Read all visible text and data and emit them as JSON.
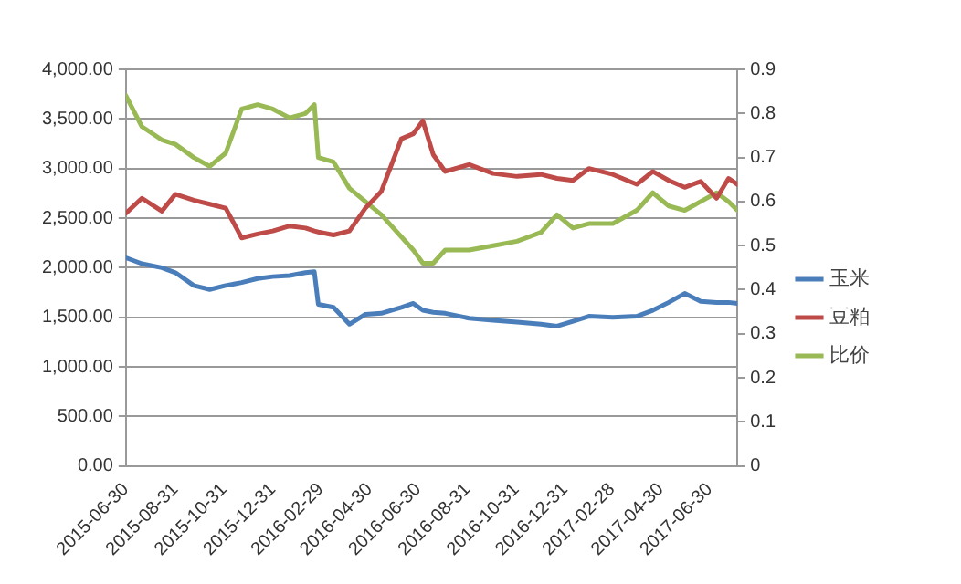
{
  "chart_data": {
    "type": "line",
    "x": [
      "2015-06-30",
      "2015-07-20",
      "2015-08-14",
      "2015-08-31",
      "2015-09-23",
      "2015-10-13",
      "2015-11-02",
      "2015-11-22",
      "2015-12-12",
      "2015-12-31",
      "2016-01-21",
      "2016-02-10",
      "2016-02-21",
      "2016-02-26",
      "2016-03-16",
      "2016-04-05",
      "2016-04-25",
      "2016-05-15",
      "2016-06-09",
      "2016-06-24",
      "2016-07-06",
      "2016-07-19",
      "2016-08-03",
      "2016-09-02",
      "2016-10-02",
      "2016-11-01",
      "2016-12-01",
      "2016-12-21",
      "2017-01-10",
      "2017-01-30",
      "2017-03-01",
      "2017-03-31",
      "2017-04-20",
      "2017-05-10",
      "2017-05-30",
      "2017-06-19",
      "2017-07-09",
      "2017-07-24",
      "2017-08-04"
    ],
    "series": [
      {
        "name": "玉米",
        "color": "#4a7ebb",
        "values": [
          2100,
          2040,
          2000,
          1950,
          1820,
          1780,
          1820,
          1850,
          1890,
          1910,
          1920,
          1950,
          1960,
          1630,
          1600,
          1430,
          1530,
          1540,
          1600,
          1640,
          1570,
          1550,
          1540,
          1490,
          1470,
          1450,
          1430,
          1410,
          1460,
          1510,
          1500,
          1510,
          1570,
          1650,
          1740,
          1660,
          1650,
          1650,
          1640
        ]
      },
      {
        "name": "豆粕",
        "color": "#be4b48",
        "values": [
          2550,
          2700,
          2570,
          2740,
          2680,
          2640,
          2600,
          2300,
          2340,
          2370,
          2420,
          2400,
          2370,
          2360,
          2330,
          2370,
          2600,
          2770,
          3300,
          3350,
          3480,
          3140,
          2970,
          3040,
          2950,
          2920,
          2940,
          2900,
          2880,
          3000,
          2940,
          2840,
          2970,
          2880,
          2810,
          2870,
          2700,
          2900,
          2840
        ]
      },
      {
        "name": "比价",
        "color": "#98b954",
        "axis": "y2",
        "values": [
          0.84,
          0.77,
          0.74,
          0.73,
          0.7,
          0.68,
          0.71,
          0.81,
          0.82,
          0.81,
          0.79,
          0.8,
          0.82,
          0.7,
          0.69,
          0.63,
          0.6,
          0.57,
          0.52,
          0.49,
          0.46,
          0.46,
          0.49,
          0.49,
          0.5,
          0.51,
          0.53,
          0.57,
          0.54,
          0.55,
          0.55,
          0.58,
          0.62,
          0.59,
          0.58,
          0.6,
          0.62,
          0.6,
          0.58
        ]
      }
    ],
    "xlim": [
      "2015-06-30",
      "2017-08-04"
    ],
    "xticks": [
      "2015-06-30",
      "2015-08-31",
      "2015-10-31",
      "2015-12-31",
      "2016-02-29",
      "2016-04-30",
      "2016-06-30",
      "2016-08-31",
      "2016-10-31",
      "2016-12-31",
      "2017-02-28",
      "2017-04-30",
      "2017-06-30"
    ],
    "ylim": [
      0,
      4000
    ],
    "yticks": [
      {
        "value": 0,
        "label": "0.00"
      },
      {
        "value": 500,
        "label": "500.00"
      },
      {
        "value": 1000,
        "label": "1,000.00"
      },
      {
        "value": 1500,
        "label": "1,500.00"
      },
      {
        "value": 2000,
        "label": "2,000.00"
      },
      {
        "value": 2500,
        "label": "2,500.00"
      },
      {
        "value": 3000,
        "label": "3,000.00"
      },
      {
        "value": 3500,
        "label": "3,500.00"
      },
      {
        "value": 4000,
        "label": "4,000.00"
      }
    ],
    "y2lim": [
      0,
      0.9
    ],
    "y2ticks": [
      0,
      0.1,
      0.2,
      0.3,
      0.4,
      0.5,
      0.6,
      0.7,
      0.8,
      0.9
    ],
    "grid": "y",
    "legend": "right",
    "marker": "none",
    "line_style": "solid"
  }
}
